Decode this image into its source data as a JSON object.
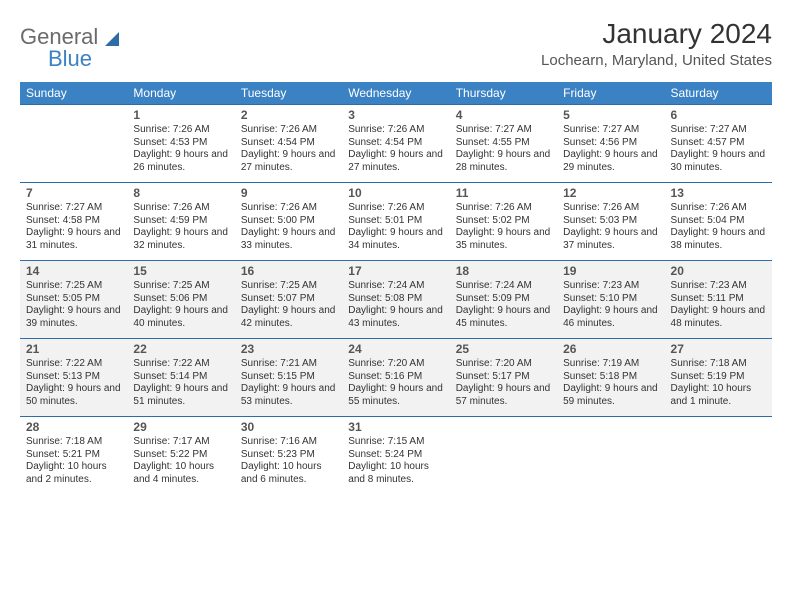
{
  "brand": {
    "word1": "General",
    "word2": "Blue"
  },
  "header": {
    "month_title": "January 2024",
    "location": "Lochearn, Maryland, United States"
  },
  "colors": {
    "header_bg": "#3b82c4",
    "header_text": "#ffffff",
    "row_border": "#2e6ca8",
    "shade_bg": "#f2f2f2",
    "logo_gray": "#6b6b6b",
    "logo_blue": "#3b82c4"
  },
  "weekdays": [
    "Sunday",
    "Monday",
    "Tuesday",
    "Wednesday",
    "Thursday",
    "Friday",
    "Saturday"
  ],
  "weeks": [
    {
      "shaded": false,
      "days": [
        null,
        {
          "n": "1",
          "sunrise": "7:26 AM",
          "sunset": "4:53 PM",
          "daylight": "9 hours and 26 minutes."
        },
        {
          "n": "2",
          "sunrise": "7:26 AM",
          "sunset": "4:54 PM",
          "daylight": "9 hours and 27 minutes."
        },
        {
          "n": "3",
          "sunrise": "7:26 AM",
          "sunset": "4:54 PM",
          "daylight": "9 hours and 27 minutes."
        },
        {
          "n": "4",
          "sunrise": "7:27 AM",
          "sunset": "4:55 PM",
          "daylight": "9 hours and 28 minutes."
        },
        {
          "n": "5",
          "sunrise": "7:27 AM",
          "sunset": "4:56 PM",
          "daylight": "9 hours and 29 minutes."
        },
        {
          "n": "6",
          "sunrise": "7:27 AM",
          "sunset": "4:57 PM",
          "daylight": "9 hours and 30 minutes."
        }
      ]
    },
    {
      "shaded": false,
      "days": [
        {
          "n": "7",
          "sunrise": "7:27 AM",
          "sunset": "4:58 PM",
          "daylight": "9 hours and 31 minutes."
        },
        {
          "n": "8",
          "sunrise": "7:26 AM",
          "sunset": "4:59 PM",
          "daylight": "9 hours and 32 minutes."
        },
        {
          "n": "9",
          "sunrise": "7:26 AM",
          "sunset": "5:00 PM",
          "daylight": "9 hours and 33 minutes."
        },
        {
          "n": "10",
          "sunrise": "7:26 AM",
          "sunset": "5:01 PM",
          "daylight": "9 hours and 34 minutes."
        },
        {
          "n": "11",
          "sunrise": "7:26 AM",
          "sunset": "5:02 PM",
          "daylight": "9 hours and 35 minutes."
        },
        {
          "n": "12",
          "sunrise": "7:26 AM",
          "sunset": "5:03 PM",
          "daylight": "9 hours and 37 minutes."
        },
        {
          "n": "13",
          "sunrise": "7:26 AM",
          "sunset": "5:04 PM",
          "daylight": "9 hours and 38 minutes."
        }
      ]
    },
    {
      "shaded": true,
      "days": [
        {
          "n": "14",
          "sunrise": "7:25 AM",
          "sunset": "5:05 PM",
          "daylight": "9 hours and 39 minutes."
        },
        {
          "n": "15",
          "sunrise": "7:25 AM",
          "sunset": "5:06 PM",
          "daylight": "9 hours and 40 minutes."
        },
        {
          "n": "16",
          "sunrise": "7:25 AM",
          "sunset": "5:07 PM",
          "daylight": "9 hours and 42 minutes."
        },
        {
          "n": "17",
          "sunrise": "7:24 AM",
          "sunset": "5:08 PM",
          "daylight": "9 hours and 43 minutes."
        },
        {
          "n": "18",
          "sunrise": "7:24 AM",
          "sunset": "5:09 PM",
          "daylight": "9 hours and 45 minutes."
        },
        {
          "n": "19",
          "sunrise": "7:23 AM",
          "sunset": "5:10 PM",
          "daylight": "9 hours and 46 minutes."
        },
        {
          "n": "20",
          "sunrise": "7:23 AM",
          "sunset": "5:11 PM",
          "daylight": "9 hours and 48 minutes."
        }
      ]
    },
    {
      "shaded": true,
      "days": [
        {
          "n": "21",
          "sunrise": "7:22 AM",
          "sunset": "5:13 PM",
          "daylight": "9 hours and 50 minutes."
        },
        {
          "n": "22",
          "sunrise": "7:22 AM",
          "sunset": "5:14 PM",
          "daylight": "9 hours and 51 minutes."
        },
        {
          "n": "23",
          "sunrise": "7:21 AM",
          "sunset": "5:15 PM",
          "daylight": "9 hours and 53 minutes."
        },
        {
          "n": "24",
          "sunrise": "7:20 AM",
          "sunset": "5:16 PM",
          "daylight": "9 hours and 55 minutes."
        },
        {
          "n": "25",
          "sunrise": "7:20 AM",
          "sunset": "5:17 PM",
          "daylight": "9 hours and 57 minutes."
        },
        {
          "n": "26",
          "sunrise": "7:19 AM",
          "sunset": "5:18 PM",
          "daylight": "9 hours and 59 minutes."
        },
        {
          "n": "27",
          "sunrise": "7:18 AM",
          "sunset": "5:19 PM",
          "daylight": "10 hours and 1 minute."
        }
      ]
    },
    {
      "shaded": false,
      "days": [
        {
          "n": "28",
          "sunrise": "7:18 AM",
          "sunset": "5:21 PM",
          "daylight": "10 hours and 2 minutes."
        },
        {
          "n": "29",
          "sunrise": "7:17 AM",
          "sunset": "5:22 PM",
          "daylight": "10 hours and 4 minutes."
        },
        {
          "n": "30",
          "sunrise": "7:16 AM",
          "sunset": "5:23 PM",
          "daylight": "10 hours and 6 minutes."
        },
        {
          "n": "31",
          "sunrise": "7:15 AM",
          "sunset": "5:24 PM",
          "daylight": "10 hours and 8 minutes."
        },
        null,
        null,
        null
      ]
    }
  ],
  "labels": {
    "sunrise": "Sunrise:",
    "sunset": "Sunset:",
    "daylight": "Daylight:"
  }
}
